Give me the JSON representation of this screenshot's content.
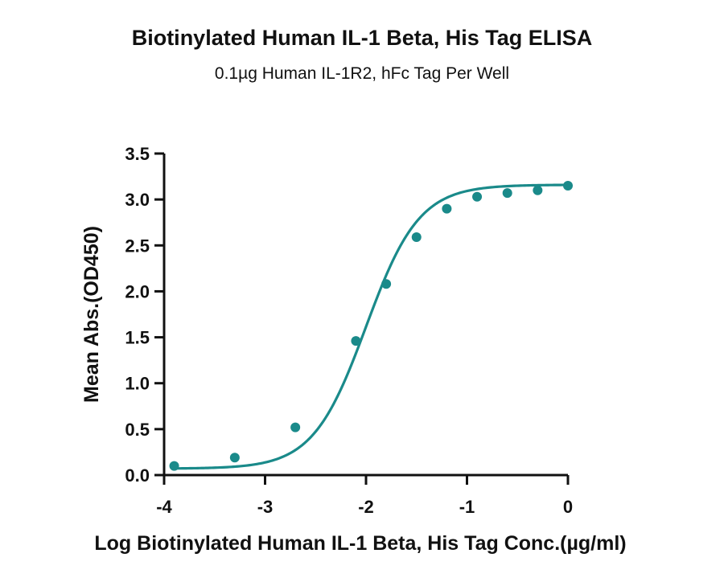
{
  "chart_data": {
    "type": "scatter",
    "title": "Biotinylated Human IL-1 Beta, His Tag ELISA",
    "subtitle": "0.1µg Human IL-1R2, hFc Tag Per Well",
    "xlabel": "Log Biotinylated Human IL-1 Beta, His Tag Conc.(µg/ml)",
    "ylabel": "Mean Abs.(OD450)",
    "xlim": [
      -4,
      0
    ],
    "ylim": [
      0,
      3.5
    ],
    "xticks": [
      "-4",
      "-3",
      "-2",
      "-1",
      "0"
    ],
    "yticks": [
      "0.0",
      "0.5",
      "1.0",
      "1.5",
      "2.0",
      "2.5",
      "3.0",
      "3.5"
    ],
    "grid": false,
    "color": "#1a8a8a",
    "fit": "4PL sigmoidal curve",
    "points": [
      {
        "x": -3.9,
        "y": 0.1
      },
      {
        "x": -3.3,
        "y": 0.19
      },
      {
        "x": -2.7,
        "y": 0.52
      },
      {
        "x": -2.1,
        "y": 1.46
      },
      {
        "x": -1.8,
        "y": 2.08
      },
      {
        "x": -1.5,
        "y": 2.59
      },
      {
        "x": -1.2,
        "y": 2.9
      },
      {
        "x": -0.9,
        "y": 3.03
      },
      {
        "x": -0.6,
        "y": 3.07
      },
      {
        "x": -0.3,
        "y": 3.1
      },
      {
        "x": 0.0,
        "y": 3.15
      }
    ]
  }
}
